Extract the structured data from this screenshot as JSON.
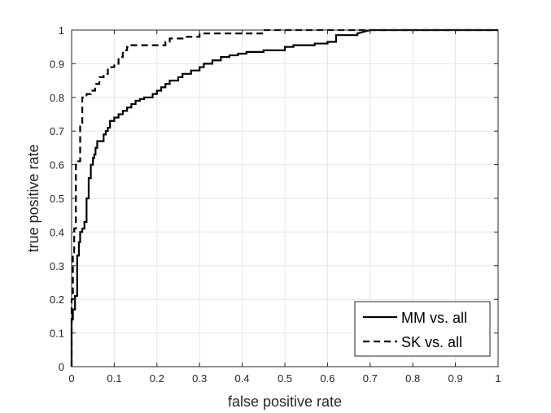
{
  "chart_data": {
    "type": "line",
    "xlabel": "false positive rate",
    "ylabel": "true positive rate",
    "xlim": [
      0,
      1
    ],
    "ylim": [
      0,
      1
    ],
    "xticks": [
      "0",
      "0.1",
      "0.2",
      "0.3",
      "0.4",
      "0.5",
      "0.6",
      "0.7",
      "0.8",
      "0.9",
      "1"
    ],
    "yticks": [
      "0",
      "0.1",
      "0.2",
      "0.3",
      "0.4",
      "0.5",
      "0.6",
      "0.7",
      "0.8",
      "0.9",
      "1"
    ],
    "grid": true,
    "legend_position": "bottom-right",
    "series": [
      {
        "name": "MM vs. all",
        "style": "solid",
        "color": "#000000",
        "x": [
          0,
          0,
          0.003,
          0.003,
          0.008,
          0.008,
          0.013,
          0.013,
          0.017,
          0.017,
          0.02,
          0.02,
          0.025,
          0.025,
          0.03,
          0.03,
          0.035,
          0.035,
          0.04,
          0.04,
          0.045,
          0.045,
          0.05,
          0.05,
          0.053,
          0.053,
          0.056,
          0.056,
          0.06,
          0.06,
          0.075,
          0.075,
          0.08,
          0.08,
          0.085,
          0.085,
          0.09,
          0.09,
          0.1,
          0.1,
          0.11,
          0.11,
          0.12,
          0.12,
          0.13,
          0.13,
          0.14,
          0.14,
          0.15,
          0.15,
          0.16,
          0.16,
          0.17,
          0.17,
          0.19,
          0.19,
          0.2,
          0.2,
          0.21,
          0.21,
          0.22,
          0.22,
          0.23,
          0.23,
          0.25,
          0.25,
          0.26,
          0.26,
          0.28,
          0.28,
          0.3,
          0.3,
          0.31,
          0.31,
          0.33,
          0.33,
          0.35,
          0.35,
          0.37,
          0.37,
          0.39,
          0.39,
          0.41,
          0.41,
          0.45,
          0.45,
          0.5,
          0.5,
          0.52,
          0.52,
          0.57,
          0.57,
          0.6,
          0.6,
          0.62,
          0.62,
          0.67,
          0.67,
          0.7,
          1
        ],
        "y": [
          0,
          0.14,
          0.14,
          0.17,
          0.17,
          0.21,
          0.21,
          0.33,
          0.33,
          0.37,
          0.37,
          0.4,
          0.4,
          0.41,
          0.41,
          0.43,
          0.43,
          0.5,
          0.5,
          0.56,
          0.56,
          0.6,
          0.6,
          0.62,
          0.62,
          0.63,
          0.63,
          0.65,
          0.65,
          0.67,
          0.67,
          0.69,
          0.69,
          0.7,
          0.7,
          0.71,
          0.71,
          0.73,
          0.73,
          0.74,
          0.74,
          0.75,
          0.75,
          0.76,
          0.76,
          0.77,
          0.77,
          0.78,
          0.78,
          0.79,
          0.79,
          0.795,
          0.795,
          0.8,
          0.8,
          0.81,
          0.81,
          0.82,
          0.82,
          0.83,
          0.83,
          0.84,
          0.84,
          0.85,
          0.85,
          0.86,
          0.86,
          0.87,
          0.87,
          0.88,
          0.88,
          0.89,
          0.89,
          0.9,
          0.9,
          0.91,
          0.91,
          0.92,
          0.92,
          0.925,
          0.925,
          0.93,
          0.93,
          0.935,
          0.935,
          0.94,
          0.94,
          0.95,
          0.95,
          0.955,
          0.955,
          0.96,
          0.96,
          0.965,
          0.965,
          0.985,
          0.985,
          0.99,
          1,
          1
        ]
      },
      {
        "name": "SK vs. all",
        "style": "dashed",
        "color": "#000000",
        "x": [
          0,
          0,
          0.003,
          0.003,
          0.006,
          0.006,
          0.01,
          0.01,
          0.015,
          0.015,
          0.02,
          0.02,
          0.025,
          0.025,
          0.035,
          0.035,
          0.045,
          0.045,
          0.055,
          0.055,
          0.065,
          0.065,
          0.075,
          0.075,
          0.085,
          0.085,
          0.1,
          0.1,
          0.11,
          0.11,
          0.12,
          0.12,
          0.13,
          0.13,
          0.14,
          0.14,
          0.15,
          0.15,
          0.22,
          0.22,
          0.23,
          0.23,
          0.27,
          0.27,
          0.3,
          0.3,
          0.45,
          0.45,
          0.5,
          1
        ],
        "y": [
          0,
          0.2,
          0.2,
          0.34,
          0.34,
          0.41,
          0.41,
          0.6,
          0.6,
          0.61,
          0.61,
          0.72,
          0.72,
          0.8,
          0.8,
          0.81,
          0.81,
          0.82,
          0.82,
          0.84,
          0.84,
          0.86,
          0.86,
          0.87,
          0.87,
          0.89,
          0.89,
          0.9,
          0.9,
          0.92,
          0.92,
          0.94,
          0.94,
          0.95,
          0.95,
          0.955,
          0.955,
          0.955,
          0.955,
          0.965,
          0.965,
          0.975,
          0.975,
          0.98,
          0.98,
          0.99,
          0.99,
          1,
          1,
          1
        ]
      }
    ]
  }
}
